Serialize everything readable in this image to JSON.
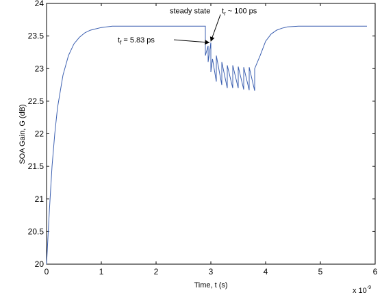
{
  "chart_data": {
    "type": "line",
    "title": "",
    "xlabel": "Time, t (s)",
    "ylabel": "SOA Gain, G (dB)",
    "x_multiplier": "x 10",
    "x_multiplier_exp": "-9",
    "xlim": [
      0,
      6
    ],
    "ylim": [
      20,
      24
    ],
    "xticks": [
      "0",
      "1",
      "2",
      "3",
      "4",
      "5",
      "6"
    ],
    "yticks": [
      "20",
      "20.5",
      "21",
      "21.5",
      "22",
      "22.5",
      "23",
      "23.5",
      "24"
    ],
    "grid": false,
    "line_color": "#3b5fb0",
    "series": [
      {
        "x": [
          0,
          0.05,
          0.1,
          0.15,
          0.2,
          0.3,
          0.4,
          0.5,
          0.6,
          0.7,
          0.8,
          0.9,
          1.0,
          1.2,
          1.4,
          1.6,
          2.0,
          2.5,
          2.9,
          2.9,
          2.95,
          2.95,
          3.0,
          3.0,
          3.03,
          3.03,
          3.1,
          3.1,
          3.2,
          3.2,
          3.3,
          3.3,
          3.4,
          3.4,
          3.5,
          3.5,
          3.6,
          3.6,
          3.7,
          3.7,
          3.8,
          3.8,
          3.9,
          4.0,
          4.1,
          4.2,
          4.3,
          4.4,
          4.6,
          4.8,
          5.0,
          5.5,
          5.85
        ],
        "y": [
          20.0,
          20.8,
          21.5,
          22.0,
          22.4,
          22.9,
          23.2,
          23.38,
          23.48,
          23.55,
          23.59,
          23.61,
          23.63,
          23.65,
          23.65,
          23.65,
          23.65,
          23.65,
          23.65,
          23.2,
          23.35,
          23.1,
          23.4,
          22.95,
          23.15,
          23.15,
          22.8,
          23.2,
          22.75,
          23.1,
          22.7,
          23.05,
          22.7,
          23.05,
          22.7,
          23.03,
          22.68,
          23.02,
          22.67,
          23.02,
          22.66,
          23.0,
          23.2,
          23.42,
          23.53,
          23.59,
          23.62,
          23.64,
          23.65,
          23.65,
          23.65,
          23.65,
          23.65
        ]
      }
    ],
    "annotations": [
      {
        "text": "steady state",
        "x": 2.25,
        "y": 23.85
      },
      {
        "text": "t",
        "sub": "f",
        "rest": " = 5.83 ps",
        "x": 1.3,
        "y": 23.4,
        "arrow_to": [
          2.97,
          23.4
        ]
      },
      {
        "text": "t",
        "sub": "r",
        "rest": " ~ 100 ps",
        "x": 3.2,
        "y": 23.85,
        "arrow_to": [
          3.0,
          23.42
        ]
      }
    ]
  }
}
